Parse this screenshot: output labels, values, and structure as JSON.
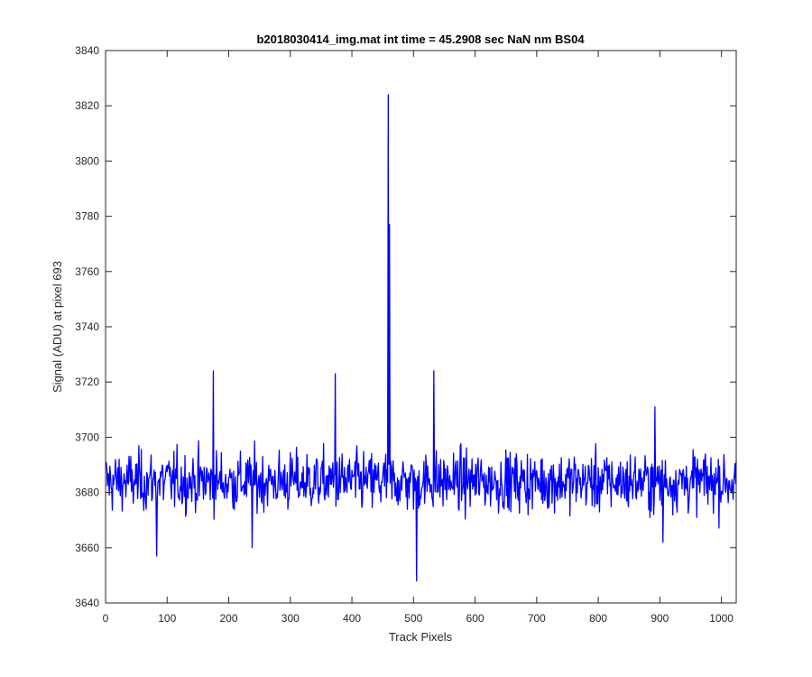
{
  "chart_data": {
    "type": "line",
    "title": "b2018030414_img.mat int time = 45.2908 sec  NaN nm BS04",
    "xlabel": "Track Pixels",
    "ylabel": "Signal (ADU) at pixel 693",
    "xlim": [
      0,
      1024
    ],
    "ylim": [
      3640,
      3840
    ],
    "x_ticks": [
      0,
      100,
      200,
      300,
      400,
      500,
      600,
      700,
      800,
      900,
      1000
    ],
    "y_ticks": [
      3640,
      3660,
      3680,
      3700,
      3720,
      3740,
      3760,
      3780,
      3800,
      3820,
      3840
    ],
    "grid": false,
    "legend": "none",
    "series": [
      {
        "color": "#0000ff",
        "x_start": 1,
        "x_end": 1024,
        "baseline_mean": 3684,
        "baseline_noise_range": [
          3662,
          3711
        ],
        "features": [
          {
            "x": 83,
            "y": 3657
          },
          {
            "x": 175,
            "y": 3724
          },
          {
            "x": 238,
            "y": 3660
          },
          {
            "x": 373,
            "y": 3723
          },
          {
            "x": 459,
            "y": 3824
          },
          {
            "x": 461,
            "y": 3777
          },
          {
            "x": 505,
            "y": 3648
          },
          {
            "x": 533,
            "y": 3724
          },
          {
            "x": 892,
            "y": 3711
          },
          {
            "x": 905,
            "y": 3662
          }
        ]
      }
    ]
  }
}
